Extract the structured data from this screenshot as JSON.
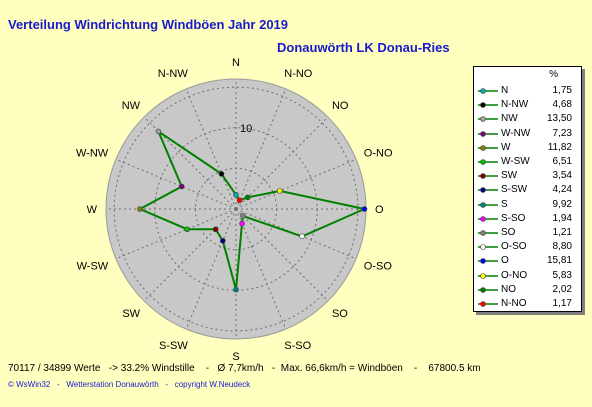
{
  "chart_data": {
    "type": "radar",
    "title": "Verteilung Windrichtung Windböen  Jahr 2019",
    "subtitle": "Donauwörth LK Donau-Ries",
    "directions": [
      "N",
      "N-NO",
      "NO",
      "O-NO",
      "O",
      "O-SO",
      "SO",
      "S-SO",
      "S",
      "S-SW",
      "SW",
      "W-SW",
      "W",
      "W-NW",
      "NW",
      "N-NW"
    ],
    "values": [
      1.75,
      1.17,
      2.02,
      5.83,
      15.81,
      8.8,
      1.21,
      1.94,
      9.92,
      4.24,
      3.54,
      6.51,
      11.82,
      7.23,
      13.5,
      4.68
    ],
    "rmax": 16,
    "ring_step": 5,
    "ring_label": "10",
    "line_color": "#008000",
    "disc_color": "#c8c8c8"
  },
  "legend": {
    "unit": "%",
    "items": [
      {
        "label": "N",
        "value": "1,75",
        "color": "#00b0b0"
      },
      {
        "label": "N-NW",
        "value": "4,68",
        "color": "#000000"
      },
      {
        "label": "NW",
        "value": "13,50",
        "color": "#a0a0a0"
      },
      {
        "label": "W-NW",
        "value": "7,23",
        "color": "#800080"
      },
      {
        "label": "W",
        "value": "11,82",
        "color": "#808000"
      },
      {
        "label": "W-SW",
        "value": "6,51",
        "color": "#00c000"
      },
      {
        "label": "SW",
        "value": "3,54",
        "color": "#800000"
      },
      {
        "label": "S-SW",
        "value": "4,24",
        "color": "#000080"
      },
      {
        "label": "S",
        "value": "9,92",
        "color": "#008080"
      },
      {
        "label": "S-SO",
        "value": "1,94",
        "color": "#ff00ff"
      },
      {
        "label": "SO",
        "value": "1,21",
        "color": "#808080"
      },
      {
        "label": "O-SO",
        "value": "8,80",
        "color": "#ffffff"
      },
      {
        "label": "O",
        "value": "15,81",
        "color": "#0000ff"
      },
      {
        "label": "O-NO",
        "value": "5,83",
        "color": "#ffff00"
      },
      {
        "label": "NO",
        "value": "2,02",
        "color": "#008000"
      },
      {
        "label": "N-NO",
        "value": "1,17",
        "color": "#ff0000"
      }
    ]
  },
  "footer": {
    "stats": "70117 / 34899 Werte   -> 33.2% Windstille    -   Ø 7,7km/h   -  Max. 66,6km/h = Windböen    -    67800.5 km",
    "credits": "© WsWin32   -   Wetterstation Donauwörth   -   copyright W.Neudeck"
  }
}
